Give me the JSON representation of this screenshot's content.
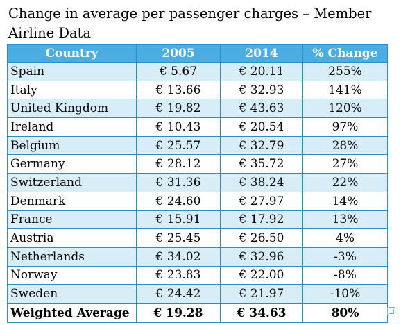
{
  "title": "Change in average per passenger charges – Member Airline Data",
  "table": {
    "headers": [
      "Country",
      "2005",
      "2014",
      "% Change"
    ],
    "rows": [
      {
        "country": "Spain",
        "y2005": "€ 5.67",
        "y2014": "€ 20.11",
        "change": "255%"
      },
      {
        "country": "Italy",
        "y2005": "€ 13.66",
        "y2014": "€ 32.93",
        "change": "141%"
      },
      {
        "country": "United Kingdom",
        "y2005": "€ 19.82",
        "y2014": "€ 43.63",
        "change": "120%"
      },
      {
        "country": "Ireland",
        "y2005": "€ 10.43",
        "y2014": "€ 20.54",
        "change": "97%"
      },
      {
        "country": "Belgium",
        "y2005": "€ 25.57",
        "y2014": "€ 32.79",
        "change": "28%"
      },
      {
        "country": "Germany",
        "y2005": "€ 28.12",
        "y2014": "€ 35.72",
        "change": "27%"
      },
      {
        "country": "Switzerland",
        "y2005": "€ 31.36",
        "y2014": "€ 38.24",
        "change": "22%"
      },
      {
        "country": "Denmark",
        "y2005": "€ 24.60",
        "y2014": "€ 27.97",
        "change": "14%"
      },
      {
        "country": "France",
        "y2005": "€ 15.91",
        "y2014": "€ 17.92",
        "change": "13%"
      },
      {
        "country": "Austria",
        "y2005": "€ 25.45",
        "y2014": "€ 26.50",
        "change": "4%"
      },
      {
        "country": "Netherlands",
        "y2005": "€ 34.02",
        "y2014": "€ 32.96",
        "change": "-3%"
      },
      {
        "country": "Norway",
        "y2005": "€ 23.83",
        "y2014": "€ 22.00",
        "change": "-8%"
      },
      {
        "country": "Sweden",
        "y2005": "€ 24.42",
        "y2014": "€ 21.97",
        "change": "-10%"
      }
    ],
    "footer": {
      "country": "Weighted Average",
      "y2005": "€ 19.28",
      "y2014": "€ 34.63",
      "change": "80%"
    }
  },
  "colors": {
    "header_bg": "#4aaee4",
    "stripe_bg": "#d7eef9",
    "border": "#2b8fcc"
  },
  "icons": {
    "resize_handle": "resize-handle-icon"
  }
}
